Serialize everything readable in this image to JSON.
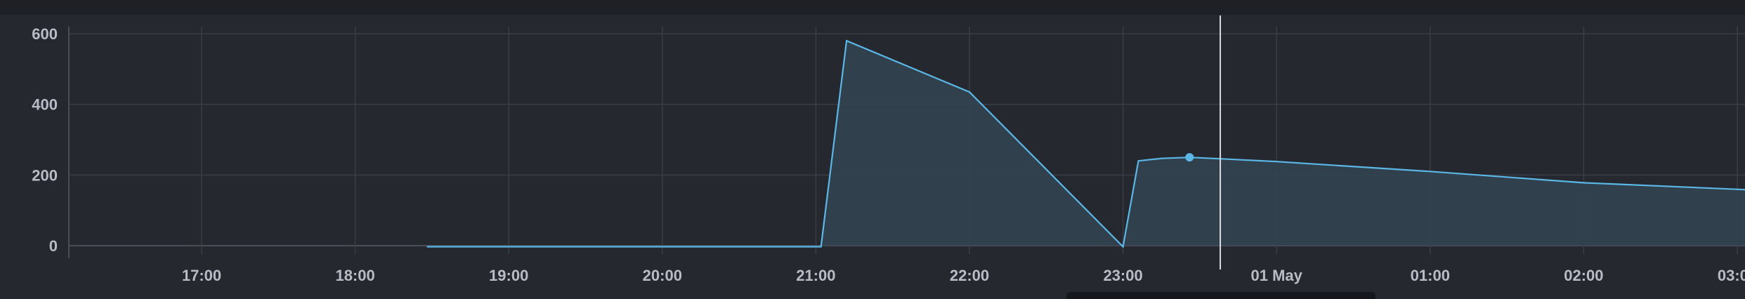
{
  "colors": {
    "background": "#262830",
    "topbar": "#1f2026",
    "grid": "#3a3d47",
    "axis": "#4a4d57",
    "series_line": "#5bb8e6",
    "series_fill": "#324452",
    "cursor": "#d8dbe3",
    "tick_text": "#b9bcc6"
  },
  "chart_data": {
    "type": "area",
    "title": "",
    "xlabel": "",
    "ylabel": "",
    "ylim": [
      0,
      600
    ],
    "yticks": [
      0,
      200,
      400,
      600
    ],
    "ytick_labels": [
      "0",
      "200",
      "400",
      "600"
    ],
    "xlim": [
      "30 Apr 16:10",
      "01 May 03:05"
    ],
    "xticks": [
      "17:00",
      "18:00",
      "19:00",
      "20:00",
      "21:00",
      "22:00",
      "23:00",
      "01 May",
      "01:00",
      "02:00",
      "03:00"
    ],
    "xtick_hours": [
      17,
      18,
      19,
      20,
      21,
      22,
      23,
      24,
      25,
      26,
      27
    ],
    "grid": true,
    "legend": "none",
    "cursor_time": "30 Apr 23:38",
    "highlighted_point": {
      "time": "30 Apr 23:26",
      "value": 250
    },
    "series": [
      {
        "points": [
          {
            "time": "30 Apr 18:28",
            "value": -3
          },
          {
            "time": "30 Apr 20:00",
            "value": -3
          },
          {
            "time": "30 Apr 21:02",
            "value": -3
          },
          {
            "time": "30 Apr 21:12",
            "value": 580
          },
          {
            "time": "30 Apr 22:00",
            "value": 435
          },
          {
            "time": "30 Apr 23:00",
            "value": -3
          },
          {
            "time": "30 Apr 23:06",
            "value": 240
          },
          {
            "time": "30 Apr 23:15",
            "value": 247
          },
          {
            "time": "30 Apr 23:26",
            "value": 250
          },
          {
            "time": "30 Apr 23:38",
            "value": 246
          },
          {
            "time": "01 May 00:00",
            "value": 238
          },
          {
            "time": "01 May 01:00",
            "value": 210
          },
          {
            "time": "01 May 02:00",
            "value": 178
          },
          {
            "time": "01 May 03:05",
            "value": 158
          }
        ]
      }
    ]
  }
}
